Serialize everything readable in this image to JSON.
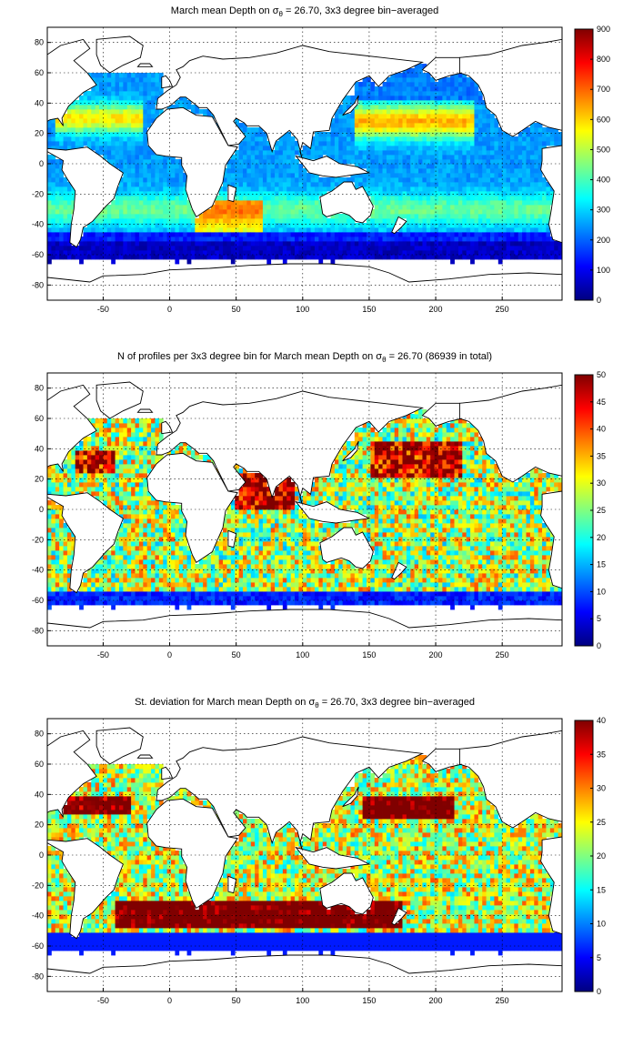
{
  "chart_data": [
    {
      "type": "heatmap",
      "title_main": "March mean Depth on σ",
      "title_sub": "θ",
      "title_rest": " = 26.70, 3x3 degree bin−averaged",
      "x_ticks": [
        -50,
        0,
        50,
        100,
        150,
        200,
        250
      ],
      "y_ticks": [
        80,
        60,
        40,
        20,
        0,
        -20,
        -40,
        -60,
        -80
      ],
      "xlim": [
        -92,
        295
      ],
      "ylim": [
        -90,
        90
      ],
      "colorbar": {
        "min": 0,
        "max": 900,
        "ticks": [
          0,
          100,
          200,
          300,
          400,
          500,
          600,
          700,
          800,
          900
        ]
      },
      "colormap": "jet",
      "grid": true
    },
    {
      "type": "heatmap",
      "title_main": "N of profiles per 3x3 degree bin for March mean Depth on σ",
      "title_sub": "θ",
      "title_rest": " = 26.70 (86939 in total)",
      "x_ticks": [
        -50,
        0,
        50,
        100,
        150,
        200,
        250
      ],
      "y_ticks": [
        80,
        60,
        40,
        20,
        0,
        -20,
        -40,
        -60,
        -80
      ],
      "xlim": [
        -92,
        295
      ],
      "ylim": [
        -90,
        90
      ],
      "colorbar": {
        "min": 0,
        "max": 50,
        "ticks": [
          0,
          5,
          10,
          15,
          20,
          25,
          30,
          35,
          40,
          45,
          50
        ]
      },
      "colormap": "jet",
      "grid": true
    },
    {
      "type": "heatmap",
      "title_main": "St. deviation for March mean Depth on σ",
      "title_sub": "θ",
      "title_rest": " = 26.70, 3x3 degree bin−averaged",
      "x_ticks": [
        -50,
        0,
        50,
        100,
        150,
        200,
        250
      ],
      "y_ticks": [
        80,
        60,
        40,
        20,
        0,
        -20,
        -40,
        -60,
        -80
      ],
      "xlim": [
        -92,
        295
      ],
      "ylim": [
        -90,
        90
      ],
      "colorbar": {
        "min": 0,
        "max": 40,
        "ticks": [
          0,
          5,
          10,
          15,
          20,
          25,
          30,
          35,
          40
        ]
      },
      "colormap": "jet",
      "grid": true
    }
  ]
}
